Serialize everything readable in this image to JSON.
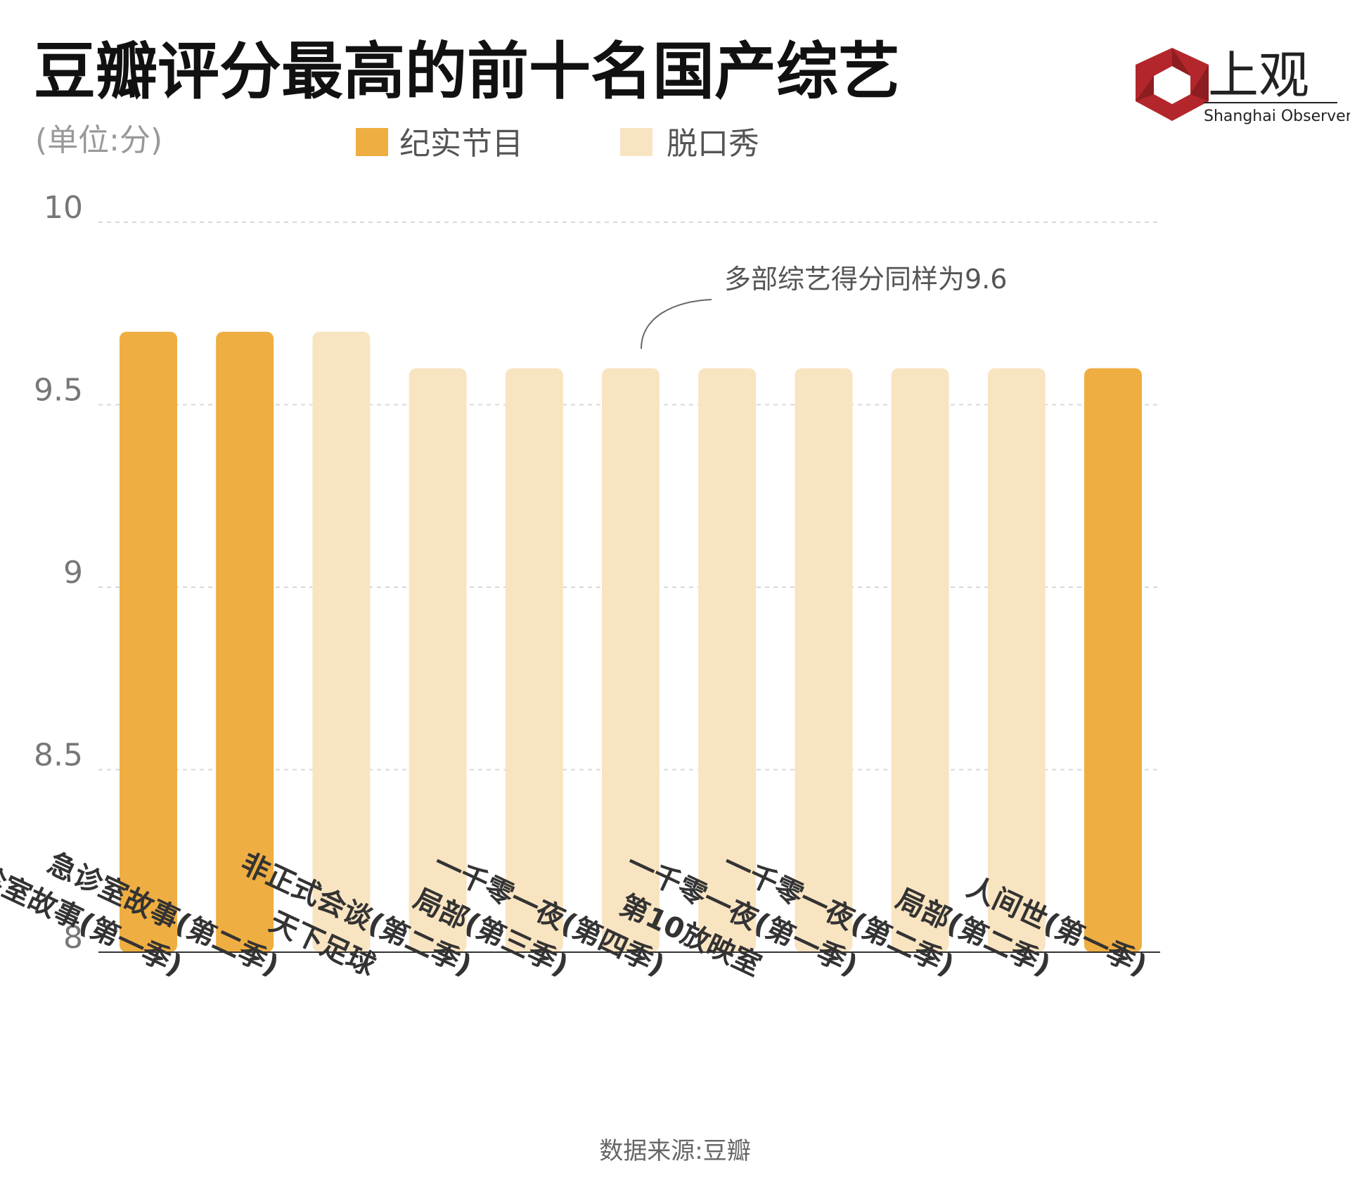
{
  "header": {
    "title": "豆瓣评分最高的前十名国产综艺",
    "unit": "(单位:分)"
  },
  "logo": {
    "name_cn": "上观",
    "name_en": "Shanghai Observer",
    "icon": "shanghai-observer-logo-icon",
    "color": "#B3262B"
  },
  "legend": [
    {
      "label": "纪实节目",
      "color": "#EFAE42"
    },
    {
      "label": "脱口秀",
      "color": "#F9E4C2"
    }
  ],
  "annotation": {
    "text": "多部综艺得分同样为9.6"
  },
  "source": "数据来源:豆瓣",
  "chart_data": {
    "type": "bar",
    "title": "豆瓣评分最高的前十名国产综艺",
    "ylabel": "(单位:分)",
    "ylim": [
      8,
      10
    ],
    "yticks": [
      8,
      8.5,
      9,
      9.5,
      10
    ],
    "ytick_labels": [
      "8",
      "8.5",
      "9",
      "9.5",
      "10"
    ],
    "grid": true,
    "legend_position": "top",
    "categories": [
      "急诊室故事(第一季)",
      "急诊室故事(第二季)",
      "天下足球",
      "非正式会谈(第二季)",
      "局部(第三季)",
      "一千零一夜(第四季)",
      "第10放映室",
      "一千零一夜(第一季)",
      "一千零一夜(第二季)",
      "局部(第二季)",
      "人间世(第一季)"
    ],
    "values": [
      9.7,
      9.7,
      9.7,
      9.6,
      9.6,
      9.6,
      9.6,
      9.6,
      9.6,
      9.6,
      9.6
    ],
    "types": [
      "纪实节目",
      "纪实节目",
      "脱口秀",
      "脱口秀",
      "脱口秀",
      "脱口秀",
      "脱口秀",
      "脱口秀",
      "脱口秀",
      "脱口秀",
      "纪实节目"
    ]
  }
}
